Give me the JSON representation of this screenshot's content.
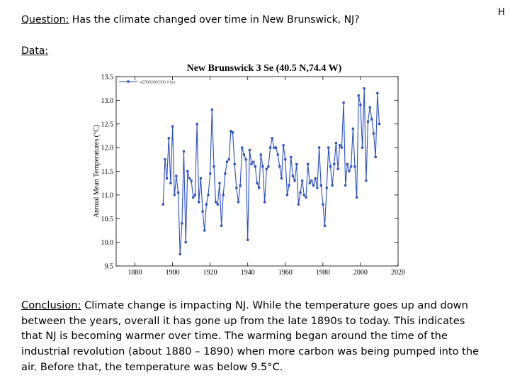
{
  "header": {
    "question_label": "Question:",
    "question_text": " Has the climate changed over time in New Brunswick, NJ?",
    "data_label": "Data:",
    "corner_letter": "H"
  },
  "conclusion": {
    "label": "Conclusion:",
    "text": " Climate change is impacting NJ. While the temperature goes up and down between the years, overall it has gone up from the late 1890s to today. This indicates that NJ is becoming warmer over time. The warming began around the time of the industrial revolution (about 1880 – 1890) when more carbon was being pumped into the air. Before that, the temperature was below 9.5°C."
  },
  "chart_data": {
    "type": "line",
    "title": "New Brunswick 3 Se (40.5 N,74.4 W)",
    "xlabel": "",
    "ylabel": "Annual Mean Temperatures (°C)",
    "xlim": [
      1870,
      2020
    ],
    "ylim": [
      9.5,
      13.5
    ],
    "xticks": [
      1880,
      1900,
      1920,
      1940,
      1960,
      1980,
      2000,
      2020
    ],
    "yticks": [
      9.5,
      10.0,
      10.5,
      11.0,
      11.5,
      12.0,
      12.5,
      13.0,
      13.5
    ],
    "grid": false,
    "legend_position": "top-left",
    "series": [
      {
        "name": "425002860300 0 km",
        "color": "#2b4fc4",
        "x": [
          1895,
          1896,
          1897,
          1898,
          1899,
          1900,
          1901,
          1902,
          1903,
          1904,
          1905,
          1906,
          1907,
          1908,
          1909,
          1910,
          1911,
          1912,
          1913,
          1914,
          1915,
          1916,
          1917,
          1918,
          1919,
          1920,
          1921,
          1922,
          1923,
          1924,
          1925,
          1926,
          1927,
          1928,
          1929,
          1930,
          1931,
          1932,
          1933,
          1934,
          1935,
          1936,
          1937,
          1938,
          1939,
          1940,
          1941,
          1942,
          1943,
          1944,
          1945,
          1946,
          1947,
          1948,
          1949,
          1950,
          1951,
          1952,
          1953,
          1954,
          1955,
          1956,
          1957,
          1958,
          1959,
          1960,
          1961,
          1962,
          1963,
          1964,
          1965,
          1966,
          1967,
          1968,
          1969,
          1970,
          1971,
          1972,
          1973,
          1974,
          1975,
          1976,
          1977,
          1978,
          1979,
          1980,
          1981,
          1982,
          1983,
          1984,
          1985,
          1986,
          1987,
          1988,
          1989,
          1990,
          1991,
          1992,
          1993,
          1994,
          1995,
          1996,
          1997,
          1998,
          1999,
          2000,
          2001,
          2002,
          2003,
          2004,
          2005,
          2006,
          2007,
          2008,
          2009,
          2010
        ],
        "values": [
          10.8,
          11.75,
          11.35,
          12.2,
          11.25,
          12.45,
          11.0,
          11.4,
          11.05,
          9.75,
          10.4,
          11.92,
          10.0,
          11.5,
          11.35,
          11.3,
          10.95,
          11.0,
          12.5,
          10.85,
          11.35,
          10.65,
          10.25,
          10.8,
          11.0,
          11.45,
          12.8,
          11.6,
          10.85,
          10.8,
          11.25,
          10.35,
          11.0,
          11.45,
          11.7,
          11.75,
          12.35,
          12.32,
          11.65,
          11.15,
          10.85,
          11.2,
          12.0,
          11.85,
          11.75,
          10.05,
          11.95,
          11.65,
          11.7,
          11.6,
          11.25,
          11.15,
          11.85,
          11.6,
          10.85,
          11.55,
          11.6,
          12.0,
          12.2,
          12.0,
          12.0,
          11.85,
          11.6,
          11.35,
          12.05,
          11.75,
          11.0,
          11.2,
          11.8,
          11.4,
          11.3,
          11.65,
          10.8,
          11.05,
          11.3,
          11.0,
          10.95,
          11.65,
          11.25,
          11.3,
          11.2,
          11.35,
          11.15,
          12.0,
          11.2,
          10.8,
          10.35,
          11.15,
          12.0,
          11.6,
          11.2,
          11.65,
          12.1,
          11.55,
          12.05,
          12.0,
          12.95,
          11.2,
          11.65,
          11.5,
          11.6,
          12.4,
          11.6,
          10.95,
          13.1,
          12.9,
          12.0,
          13.25,
          11.3,
          12.55,
          12.85,
          12.6,
          12.3,
          11.8,
          13.15,
          12.5
        ]
      }
    ]
  }
}
